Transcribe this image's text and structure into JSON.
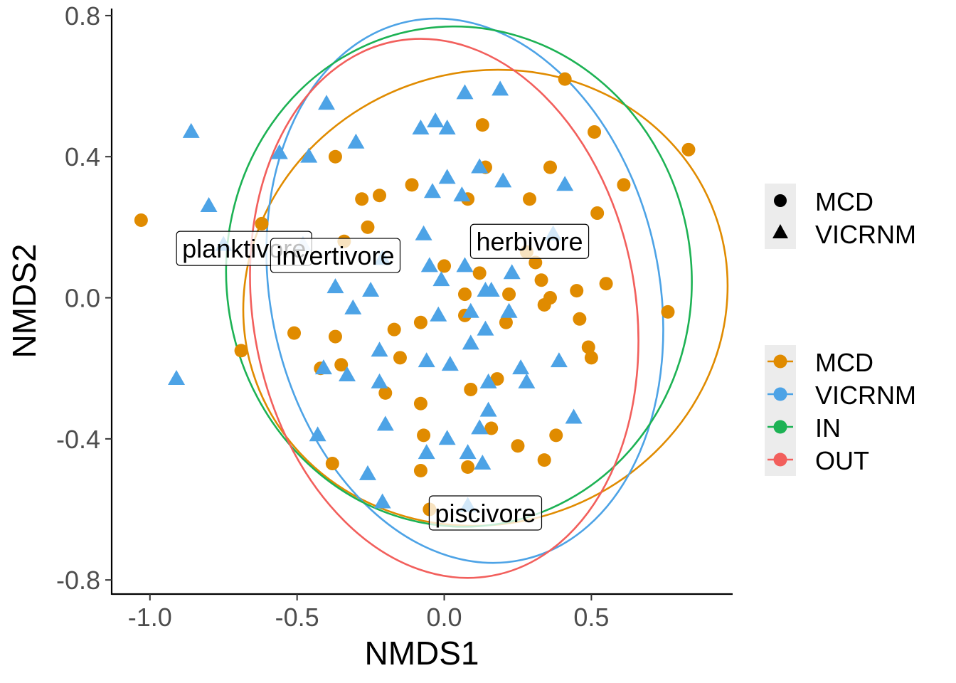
{
  "chart_data": {
    "type": "scatter",
    "xlabel": "NMDS1",
    "ylabel": "NMDS2",
    "xlim": [
      -1.13,
      0.98
    ],
    "ylim": [
      -0.84,
      0.82
    ],
    "xticks": [
      -1.0,
      -0.5,
      0.0,
      0.5
    ],
    "xtick_labels": [
      "-1.0",
      "-0.5",
      "0.0",
      "0.5"
    ],
    "yticks": [
      -0.8,
      -0.4,
      0.0,
      0.4,
      0.8
    ],
    "ytick_labels": [
      "-0.8",
      "-0.4",
      "0.0",
      "0.4",
      "0.8"
    ],
    "grid": false,
    "legend_placement": "right",
    "shape_legend": [
      {
        "label": "MCD",
        "shape": "circle"
      },
      {
        "label": "VICRNM",
        "shape": "triangle"
      }
    ],
    "color_legend": [
      {
        "label": "MCD",
        "color": "#E08B00"
      },
      {
        "label": "VICRNM",
        "color": "#4DA3E6"
      },
      {
        "label": "IN",
        "color": "#1DB254"
      },
      {
        "label": "OUT",
        "color": "#F25F5C"
      }
    ],
    "ellipses": [
      {
        "name": "MCD",
        "color": "#E08B00",
        "center": [
          0.14,
          0.0
        ],
        "rx": 0.83,
        "ry": 0.64,
        "angle_deg": -20
      },
      {
        "name": "VICRNM",
        "color": "#4DA3E6",
        "center": [
          0.07,
          0.02
        ],
        "rx": 0.66,
        "ry": 0.78,
        "angle_deg": -12
      },
      {
        "name": "IN",
        "color": "#1DB254",
        "center": [
          0.05,
          0.06
        ],
        "rx": 0.79,
        "ry": 0.71,
        "angle_deg": -8
      },
      {
        "name": "OUT",
        "color": "#F25F5C",
        "center": [
          0.0,
          -0.03
        ],
        "rx": 0.65,
        "ry": 0.77,
        "angle_deg": -10
      }
    ],
    "series": [
      {
        "name": "MCD",
        "shape": "circle",
        "color": "#E08B00",
        "points": [
          [
            -1.03,
            0.22
          ],
          [
            -0.62,
            0.21
          ],
          [
            -0.69,
            -0.15
          ],
          [
            -0.51,
            -0.1
          ],
          [
            -0.42,
            -0.2
          ],
          [
            -0.35,
            -0.19
          ],
          [
            -0.38,
            -0.47
          ],
          [
            -0.37,
            0.4
          ],
          [
            -0.34,
            0.16
          ],
          [
            -0.37,
            -0.11
          ],
          [
            -0.28,
            0.28
          ],
          [
            -0.26,
            0.2
          ],
          [
            -0.22,
            0.29
          ],
          [
            -0.2,
            -0.27
          ],
          [
            -0.17,
            -0.09
          ],
          [
            -0.15,
            -0.17
          ],
          [
            -0.11,
            0.32
          ],
          [
            -0.08,
            -0.07
          ],
          [
            -0.08,
            -0.3
          ],
          [
            -0.07,
            -0.39
          ],
          [
            -0.08,
            -0.49
          ],
          [
            -0.05,
            -0.6
          ],
          [
            0.0,
            0.09
          ],
          [
            0.07,
            0.01
          ],
          [
            0.07,
            -0.05
          ],
          [
            0.08,
            -0.48
          ],
          [
            0.09,
            -0.26
          ],
          [
            0.08,
            0.28
          ],
          [
            0.12,
            0.07
          ],
          [
            0.13,
            0.49
          ],
          [
            0.14,
            0.37
          ],
          [
            0.16,
            -0.37
          ],
          [
            0.18,
            -0.23
          ],
          [
            0.22,
            0.01
          ],
          [
            0.21,
            -0.07
          ],
          [
            0.25,
            -0.42
          ],
          [
            0.28,
            0.13
          ],
          [
            0.29,
            0.28
          ],
          [
            0.31,
            0.1
          ],
          [
            0.33,
            0.05
          ],
          [
            0.34,
            -0.02
          ],
          [
            0.36,
            0.0
          ],
          [
            0.36,
            0.37
          ],
          [
            0.34,
            -0.46
          ],
          [
            0.38,
            -0.39
          ],
          [
            0.41,
            0.62
          ],
          [
            0.45,
            0.02
          ],
          [
            0.46,
            -0.06
          ],
          [
            0.49,
            -0.14
          ],
          [
            0.5,
            -0.17
          ],
          [
            0.51,
            0.47
          ],
          [
            0.52,
            0.24
          ],
          [
            0.55,
            0.04
          ],
          [
            0.61,
            0.32
          ],
          [
            0.76,
            -0.04
          ],
          [
            0.83,
            0.42
          ]
        ]
      },
      {
        "name": "VICRNM",
        "shape": "triangle",
        "color": "#4DA3E6",
        "points": [
          [
            -0.91,
            -0.23
          ],
          [
            -0.86,
            0.47
          ],
          [
            -0.8,
            0.26
          ],
          [
            -0.75,
            0.15
          ],
          [
            -0.56,
            0.41
          ],
          [
            -0.46,
            0.4
          ],
          [
            -0.48,
            0.15
          ],
          [
            -0.43,
            -0.39
          ],
          [
            -0.41,
            -0.2
          ],
          [
            -0.4,
            0.55
          ],
          [
            -0.37,
            0.03
          ],
          [
            -0.33,
            -0.22
          ],
          [
            -0.3,
            0.44
          ],
          [
            -0.31,
            -0.03
          ],
          [
            -0.25,
            0.02
          ],
          [
            -0.26,
            -0.5
          ],
          [
            -0.22,
            -0.15
          ],
          [
            -0.22,
            -0.24
          ],
          [
            -0.21,
            0.11
          ],
          [
            -0.21,
            -0.58
          ],
          [
            -0.2,
            -0.36
          ],
          [
            -0.08,
            0.48
          ],
          [
            -0.03,
            0.5
          ],
          [
            -0.07,
            0.18
          ],
          [
            -0.06,
            -0.18
          ],
          [
            -0.04,
            0.3
          ],
          [
            -0.06,
            -0.44
          ],
          [
            -0.05,
            0.09
          ],
          [
            -0.02,
            -0.05
          ],
          [
            -0.01,
            0.05
          ],
          [
            0.01,
            0.34
          ],
          [
            0.01,
            0.48
          ],
          [
            0.02,
            -0.19
          ],
          [
            0.01,
            -0.4
          ],
          [
            0.06,
            0.29
          ],
          [
            0.07,
            0.58
          ],
          [
            0.07,
            0.09
          ],
          [
            0.08,
            -0.59
          ],
          [
            0.09,
            -0.04
          ],
          [
            0.09,
            -0.13
          ],
          [
            0.08,
            -0.44
          ],
          [
            0.12,
            -0.37
          ],
          [
            0.12,
            0.37
          ],
          [
            0.13,
            -0.47
          ],
          [
            0.14,
            0.02
          ],
          [
            0.15,
            -0.32
          ],
          [
            0.14,
            -0.09
          ],
          [
            0.15,
            -0.24
          ],
          [
            0.16,
            0.02
          ],
          [
            0.19,
            0.59
          ],
          [
            0.2,
            0.33
          ],
          [
            0.22,
            -0.04
          ],
          [
            0.23,
            0.07
          ],
          [
            0.26,
            -0.2
          ],
          [
            0.28,
            -0.24
          ],
          [
            0.37,
            0.18
          ],
          [
            0.39,
            -0.18
          ],
          [
            0.41,
            0.32
          ],
          [
            0.44,
            -0.34
          ]
        ]
      }
    ],
    "labels": [
      {
        "text": "planktivore",
        "x": -0.68,
        "y": 0.14
      },
      {
        "text": "invertivore",
        "x": -0.37,
        "y": 0.12
      },
      {
        "text": "herbivore",
        "x": 0.29,
        "y": 0.16
      },
      {
        "text": "piscivore",
        "x": 0.14,
        "y": -0.61
      }
    ]
  }
}
